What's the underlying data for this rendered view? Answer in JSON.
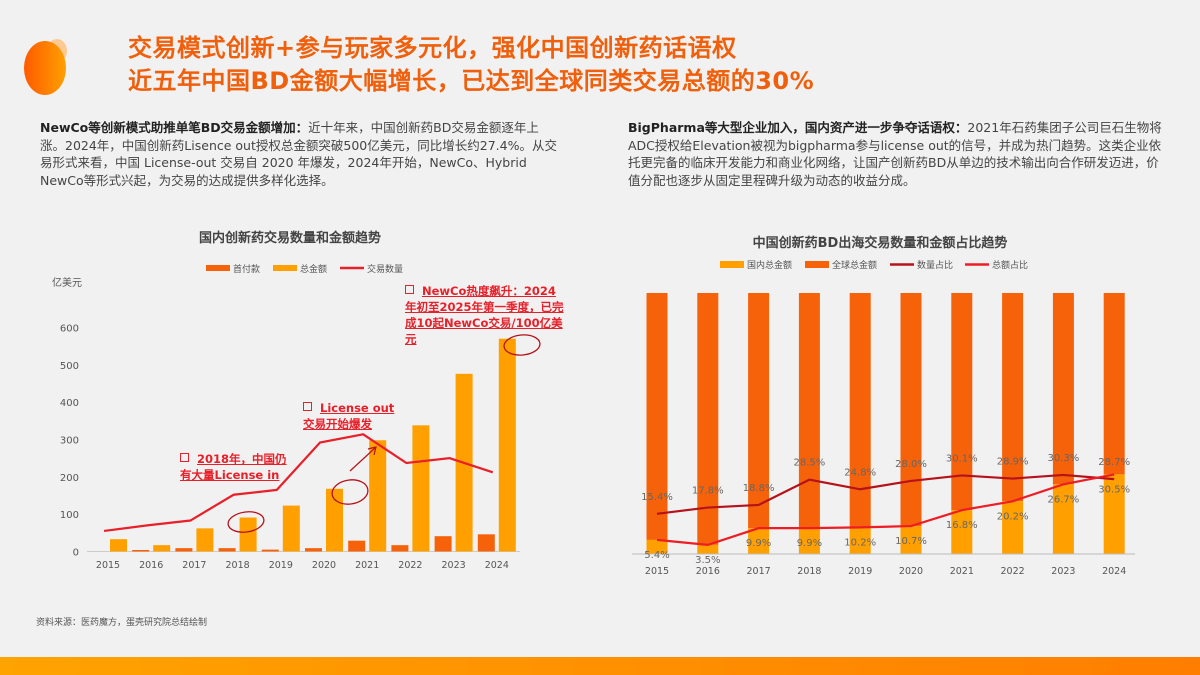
{
  "header": {
    "title_line1": "交易模式创新+参与玩家多元化，强化中国创新药话语权",
    "title_line2": "近五年中国BD金额大幅增长，已达到全球同类交易总额的30%"
  },
  "left_text": {
    "bold": "NewCo等创新模式助推单笔BD交易金额增加：",
    "body": "近十年来，中国创新药BD交易金额逐年上涨。2024年，中国创新药Lisence out授权总金额突破500亿美元，同比增长约27.4%。从交易形式来看，中国 License-out 交易自 2020 年爆发，2024年开始，NewCo、Hybrid NewCo等形式兴起，为交易的达成提供多样化选择。"
  },
  "right_text": {
    "bold": "BigPharma等大型企业加入，国内资产进一步争夺话语权：",
    "body": "2021年石药集团子公司巨石生物将ADC授权给Elevation被视为bigpharma参与license out的信号，并成为热门趋势。这类企业依托更完备的临床开发能力和商业化网络，让国产创新药BD从单边的技术输出向合作研发迈进，价值分配也逐步从固定里程碑升级为动态的收益分成。"
  },
  "source": "资料来源：医药魔方，蛋壳研究院总结绘制",
  "chart_data": [
    {
      "type": "bar",
      "title": "国内创新药交易数量和金额趋势",
      "ylabel": "亿美元",
      "ylim": [
        0,
        600
      ],
      "yticks": [
        0,
        100,
        200,
        300,
        400,
        500,
        600
      ],
      "categories": [
        "2015",
        "2016",
        "2017",
        "2018",
        "2019",
        "2020",
        "2021",
        "2022",
        "2023",
        "2024"
      ],
      "series": [
        {
          "name": "首付款",
          "type": "bar",
          "color": "#f5620a",
          "values": [
            0,
            4,
            9,
            9,
            5,
            9,
            29,
            17,
            41,
            46
          ]
        },
        {
          "name": "总金额",
          "type": "bar",
          "color": "#ffa000",
          "values": [
            33,
            17,
            62,
            91,
            123,
            168,
            298,
            338,
            476,
            570
          ]
        },
        {
          "name": "交易数量",
          "type": "line",
          "color": "#e8202a",
          "values": [
            55,
            70,
            83,
            152,
            165,
            292,
            314,
            237,
            250,
            212
          ]
        }
      ],
      "legend": "top",
      "grid": false,
      "annotations": [
        {
          "text": "2018年，中国仍有大量License in",
          "year": "2018"
        },
        {
          "text": "License out交易开始爆发",
          "year": "2020"
        },
        {
          "text": "NewCo热度飙升：2024年初至2025年第一季度，已完成10起NewCo交易/100亿美元",
          "year": "2024"
        }
      ]
    },
    {
      "type": "bar",
      "stacked": "percent",
      "title": "中国创新药BD出海交易数量和金额占比趋势",
      "categories": [
        "2015",
        "2016",
        "2017",
        "2018",
        "2019",
        "2020",
        "2021",
        "2022",
        "2023",
        "2024"
      ],
      "series": [
        {
          "name": "国内总金额",
          "type": "bar",
          "color": "#ffa000"
        },
        {
          "name": "全球总金额",
          "type": "bar",
          "color": "#f5620a"
        },
        {
          "name": "数量占比",
          "type": "line",
          "color": "#b5121b",
          "unit": "%",
          "values": [
            15.4,
            17.8,
            18.8,
            28.5,
            24.8,
            28.0,
            30.1,
            28.9,
            30.3,
            28.7
          ]
        },
        {
          "name": "总额占比",
          "type": "line",
          "color": "#ee1c25",
          "unit": "%",
          "values": [
            5.4,
            3.5,
            9.9,
            9.9,
            10.2,
            10.7,
            16.8,
            20.2,
            26.7,
            30.5
          ]
        }
      ],
      "legend": "top",
      "grid": false
    }
  ]
}
